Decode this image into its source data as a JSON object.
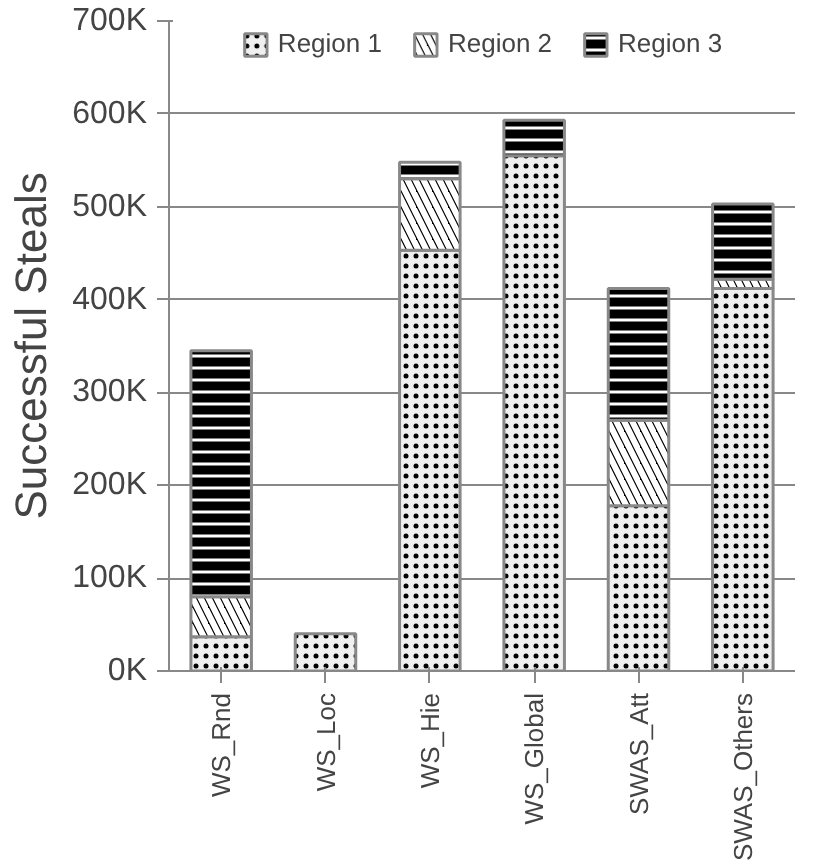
{
  "chart_data": {
    "type": "bar",
    "stacked": true,
    "ylabel": "Successful Steals",
    "categories": [
      "WS_Rnd",
      "WS_Loc",
      "WS_Hie",
      "WS_Global",
      "SWAS_Att",
      "SWAS_Others"
    ],
    "series": [
      {
        "name": "Region 1",
        "color": "#f0f0f0",
        "values": [
          37000,
          40000,
          453000,
          555000,
          178000,
          412000
        ]
      },
      {
        "name": "Region 2",
        "color": "#000000",
        "values": [
          43000,
          0,
          77000,
          0,
          92000,
          10000
        ]
      },
      {
        "name": "Region 3",
        "color": "#000000",
        "values": [
          265000,
          0,
          18000,
          38000,
          142000,
          81000
        ]
      }
    ],
    "ylim": [
      0,
      700000
    ],
    "yticks": [
      {
        "value": 0,
        "label": "0K"
      },
      {
        "value": 100000,
        "label": "100K"
      },
      {
        "value": 200000,
        "label": "200K"
      },
      {
        "value": 300000,
        "label": "300K"
      },
      {
        "value": 400000,
        "label": "400K"
      },
      {
        "value": 500000,
        "label": "500K"
      },
      {
        "value": 600000,
        "label": "600K"
      },
      {
        "value": 700000,
        "label": "700K"
      }
    ],
    "grid": "y",
    "legend": "top"
  }
}
